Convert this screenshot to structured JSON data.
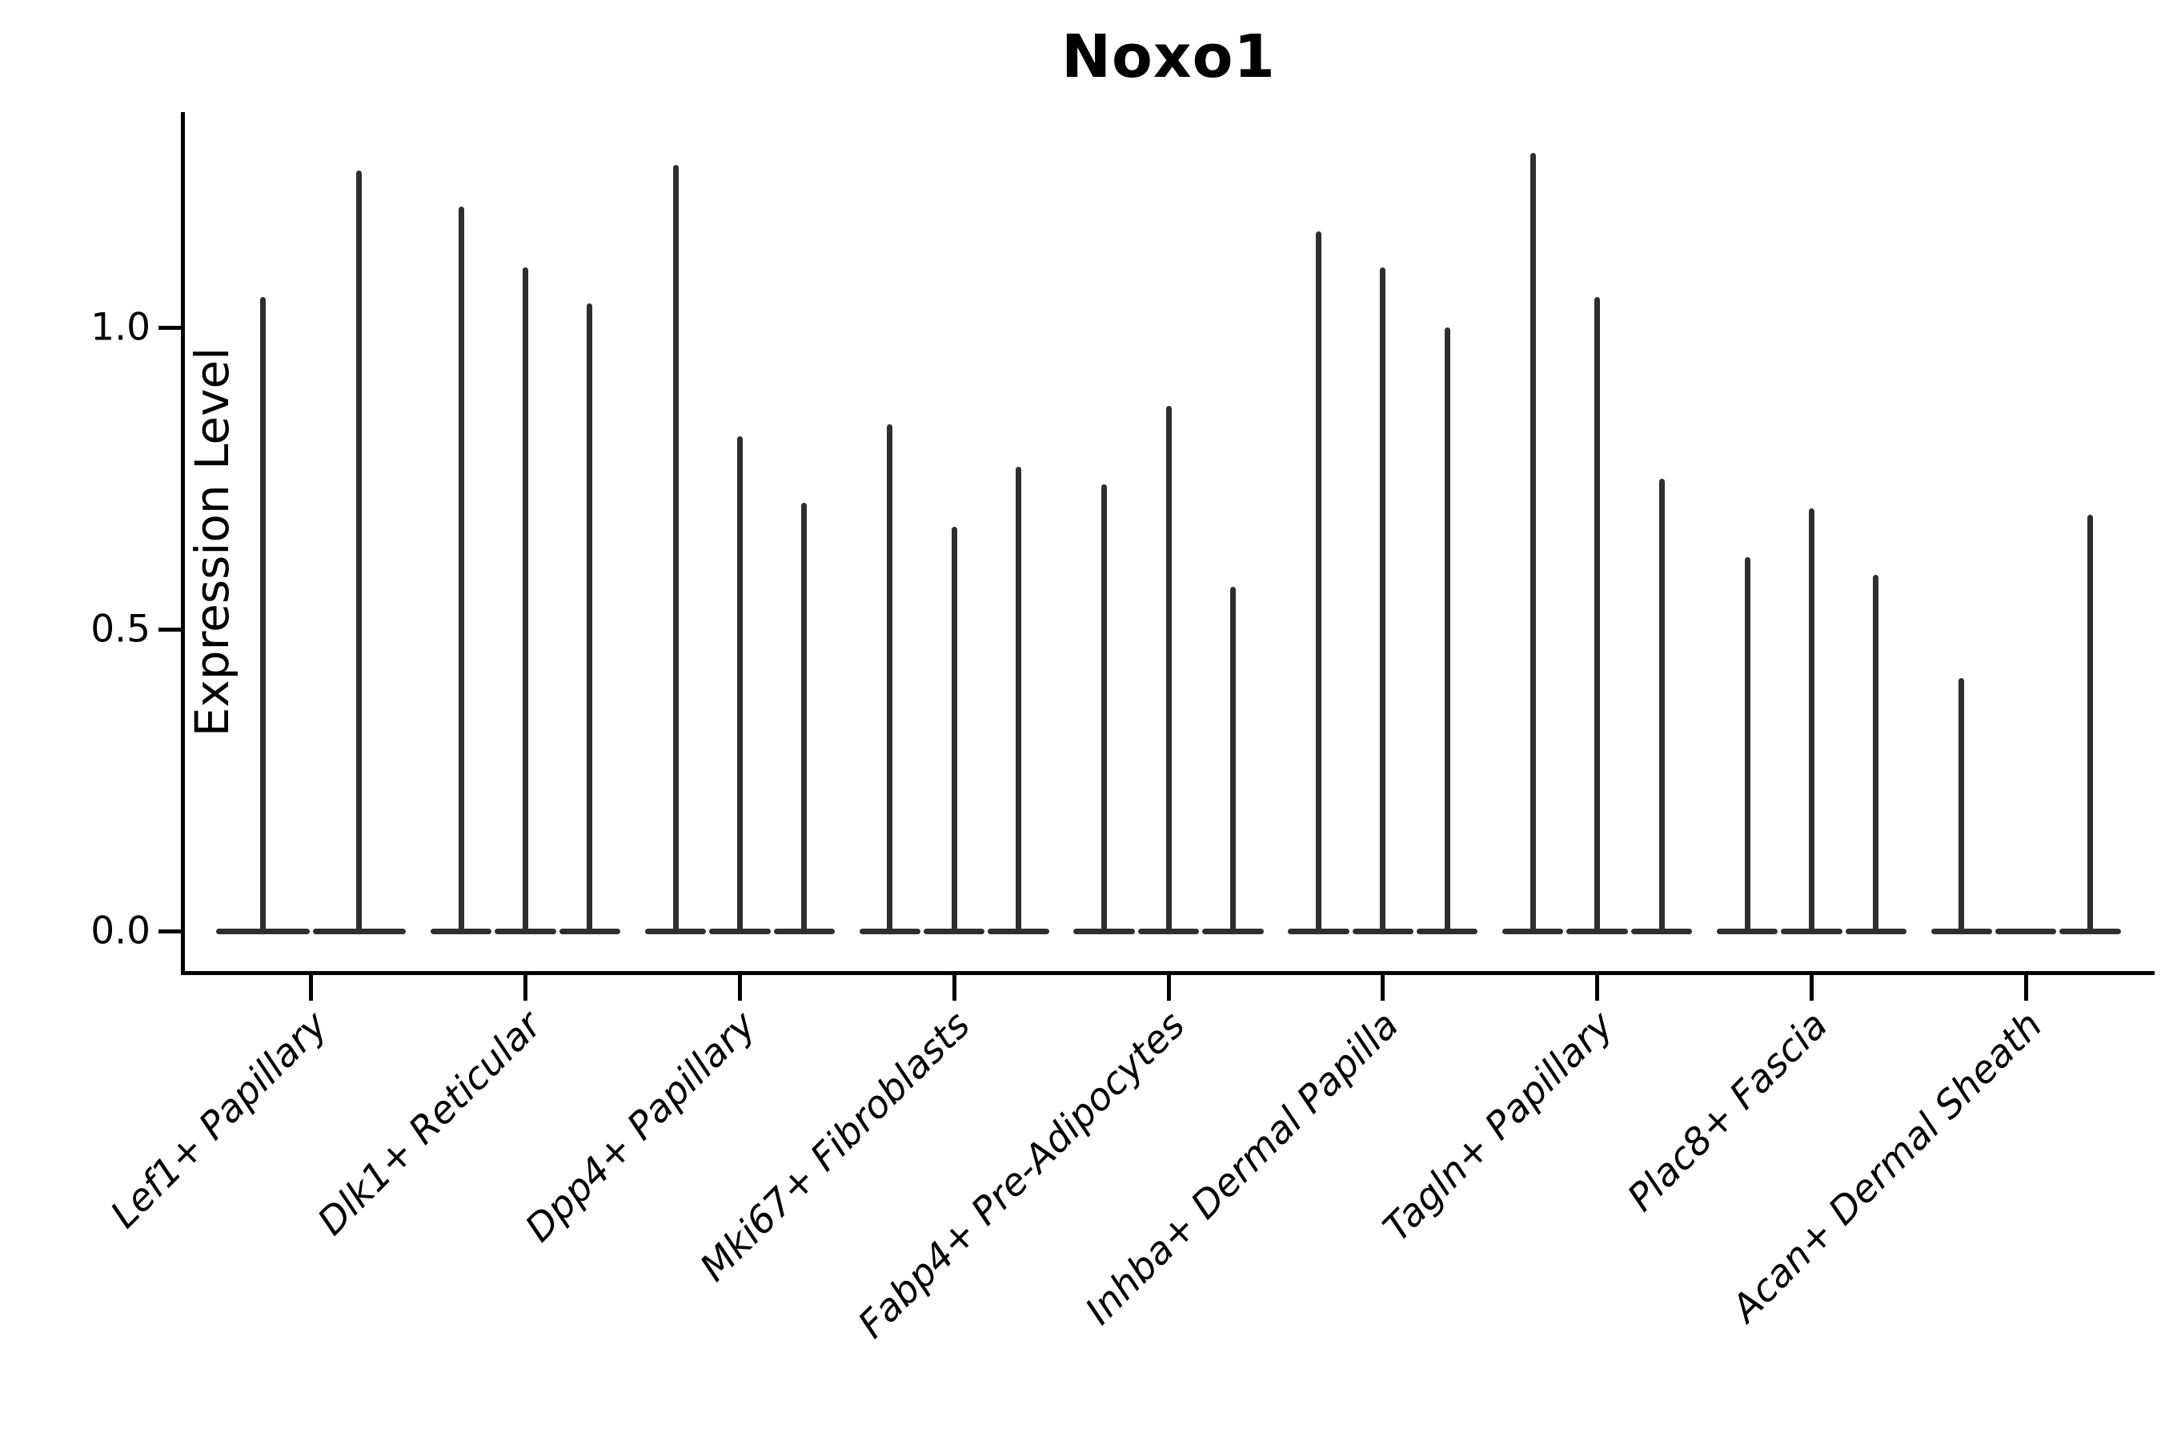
{
  "chart_data": {
    "type": "violin",
    "title": "Noxo1",
    "xlabel": "",
    "ylabel": "Expression Level",
    "ylim": [
      -0.066,
      1.357
    ],
    "y_tick_values": [
      0.0,
      0.5,
      1.0
    ],
    "y_tick_labels": [
      "0.0",
      "0.5",
      "1.0"
    ],
    "grid": false,
    "legend_position": "none",
    "violin_color": "#2e2e2e",
    "axis_color": "#000000",
    "x_label_rotation_deg": 45,
    "group_width_fraction": 0.9,
    "categories": [
      {
        "label": "Lef1+ Papillary",
        "violin_max_values": [
          1.05,
          1.26
        ]
      },
      {
        "label": "Dlk1+ Reticular",
        "violin_max_values": [
          1.2,
          1.1,
          1.04
        ]
      },
      {
        "label": "Dpp4+ Papillary",
        "violin_max_values": [
          1.27,
          0.82,
          0.71
        ]
      },
      {
        "label": "Mki67+ Fibroblasts",
        "violin_max_values": [
          0.84,
          0.67,
          0.77
        ]
      },
      {
        "label": "Fabp4+ Pre-Adipocytes",
        "violin_max_values": [
          0.74,
          0.87,
          0.57
        ]
      },
      {
        "label": "Inhba+ Dermal Papilla",
        "violin_max_values": [
          1.16,
          1.1,
          1.0
        ]
      },
      {
        "label": "Tagln+ Papillary",
        "violin_max_values": [
          1.29,
          1.05,
          0.75
        ]
      },
      {
        "label": "Plac8+ Fascia",
        "violin_max_values": [
          0.62,
          0.7,
          0.59
        ]
      },
      {
        "label": "Acan+ Dermal Sheath",
        "violin_max_values": [
          0.42,
          0.0,
          0.69
        ]
      }
    ]
  }
}
